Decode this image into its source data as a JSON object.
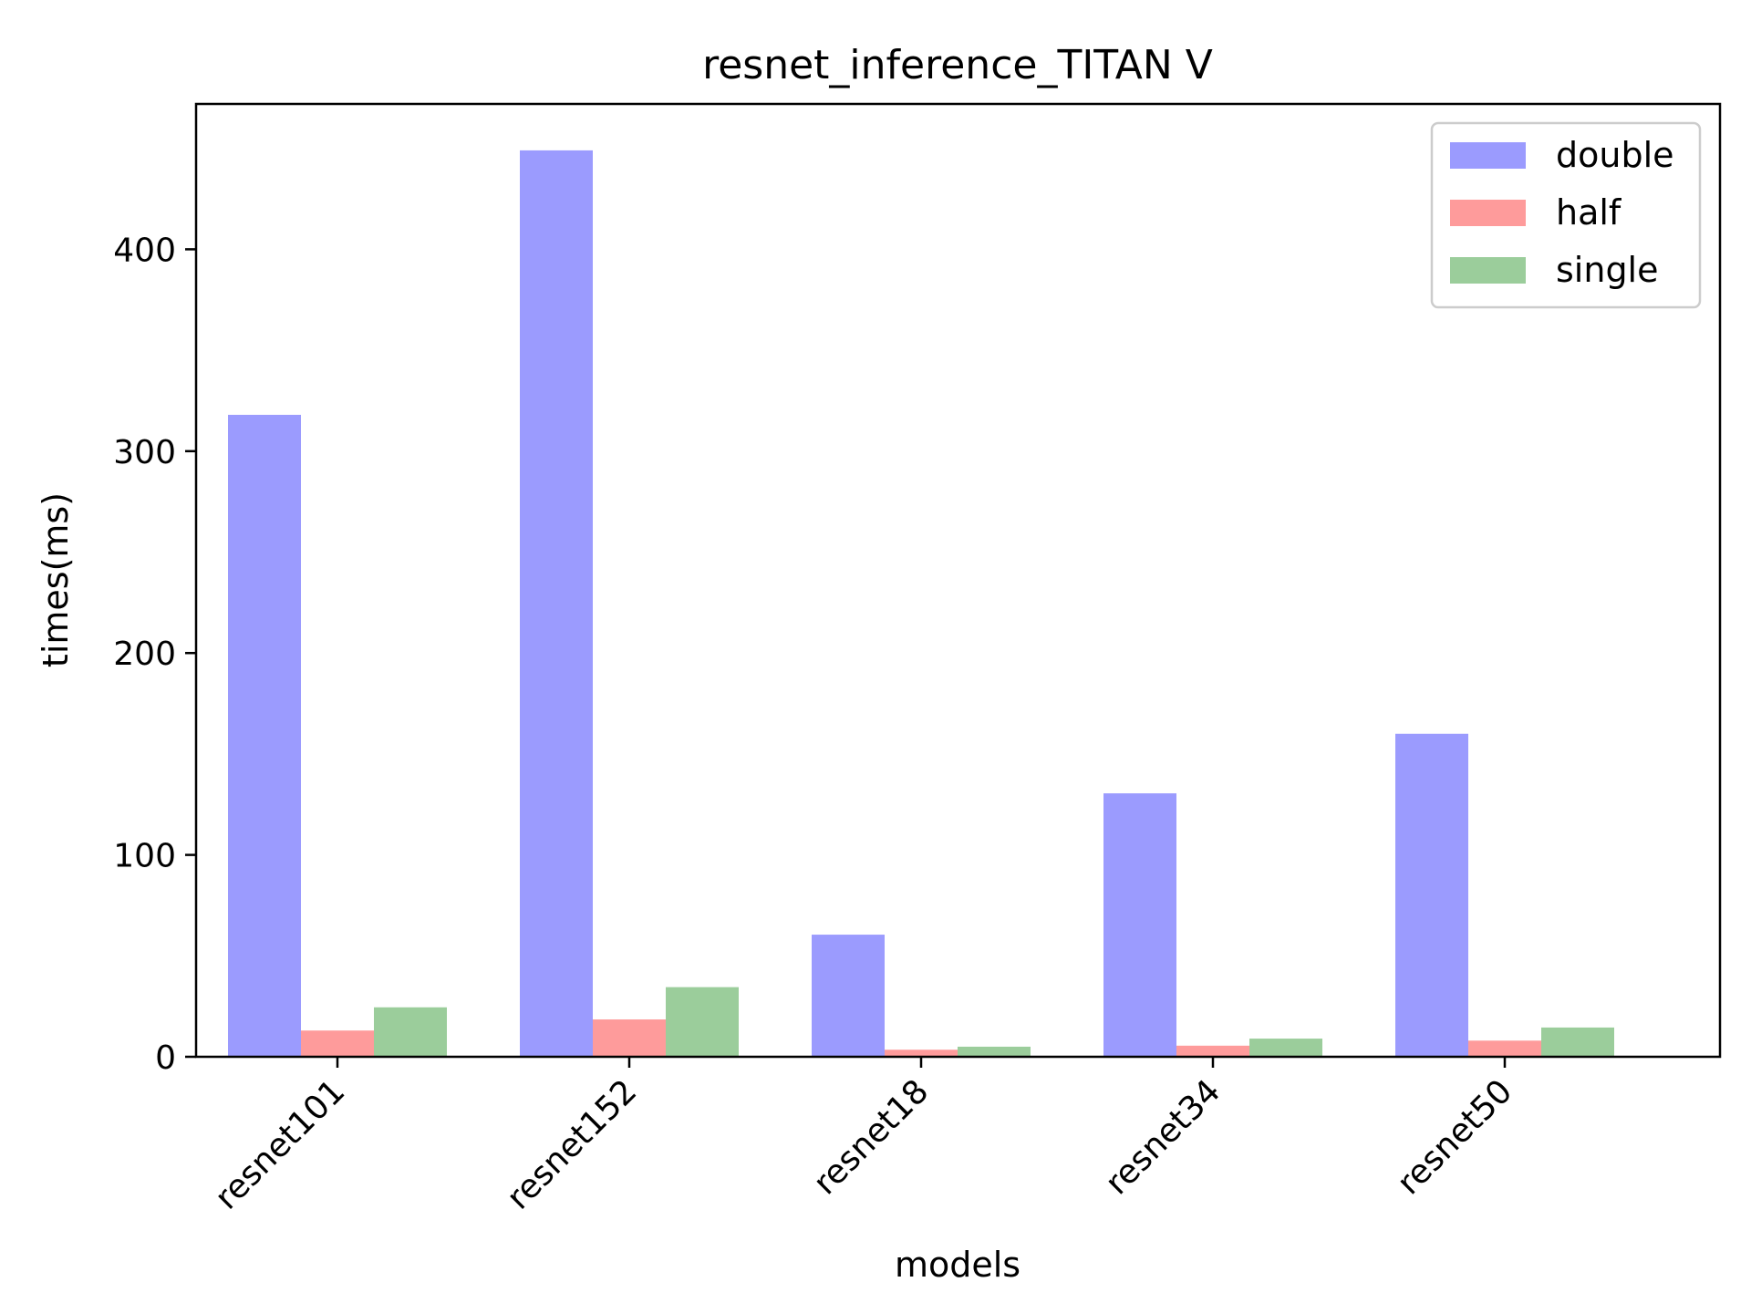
{
  "chart_data": {
    "type": "bar",
    "title": "resnet_inference_TITAN V",
    "xlabel": "models",
    "ylabel": "times(ms)",
    "categories": [
      "resnet101",
      "resnet152",
      "resnet18",
      "resnet34",
      "resnet50"
    ],
    "series": [
      {
        "name": "double",
        "color": "#9b9bfe",
        "values": [
          318,
          449,
          60.5,
          130.5,
          160
        ]
      },
      {
        "name": "half",
        "color": "#fe9b9b",
        "values": [
          13,
          18.5,
          3.5,
          5.5,
          8
        ]
      },
      {
        "name": "single",
        "color": "#9bcd9b",
        "values": [
          24.5,
          34.5,
          5,
          9,
          14.5
        ]
      }
    ],
    "ylim": [
      0,
      472
    ],
    "yticks": [
      0,
      100,
      200,
      300,
      400
    ],
    "grid": false,
    "legend_position": "top-right"
  }
}
